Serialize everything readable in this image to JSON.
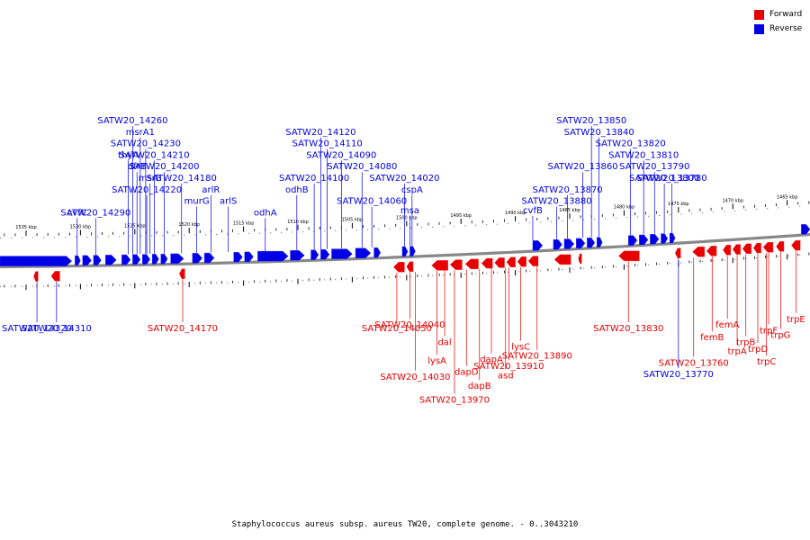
{
  "colors": {
    "forward": "#e60000",
    "reverse": "#0000e6"
  },
  "legend": [
    {
      "name": "Forward",
      "color": "#e60000"
    },
    {
      "name": "Reverse",
      "color": "#0000e6"
    }
  ],
  "caption": "Staphylococcus aureus subsp. aureus TW20, complete genome. - 0..3043210",
  "track": {
    "start_kbp": 1537.4,
    "end_kbp": 1462.9,
    "ticks": [
      "1535 kbp",
      "1530 kbp",
      "1525 kbp",
      "1520 kbp",
      "1515 kbp",
      "1510 kbp",
      "1505 kbp",
      "1500 kbp",
      "1495 kbp",
      "1490 kbp",
      "1485 kbp",
      "1480 kbp",
      "1475 kbp",
      "1470 kbp",
      "1465 kbp"
    ]
  },
  "reverse_genes": [
    {
      "start": 1537.4,
      "end": 1530.8
    },
    {
      "start": 1530.5,
      "end": 1530.0
    },
    {
      "start": 1529.8,
      "end": 1529.0
    },
    {
      "start": 1528.8,
      "end": 1528.1
    },
    {
      "start": 1527.7,
      "end": 1526.7
    },
    {
      "start": 1526.2,
      "end": 1525.4
    },
    {
      "start": 1525.2,
      "end": 1524.5
    },
    {
      "start": 1524.3,
      "end": 1523.6
    },
    {
      "start": 1523.4,
      "end": 1522.8
    },
    {
      "start": 1522.6,
      "end": 1522.0
    },
    {
      "start": 1521.7,
      "end": 1520.5
    },
    {
      "start": 1519.7,
      "end": 1518.8
    },
    {
      "start": 1518.6,
      "end": 1517.7
    },
    {
      "start": 1515.9,
      "end": 1515.1
    },
    {
      "start": 1514.9,
      "end": 1514.1
    },
    {
      "start": 1513.7,
      "end": 1510.9
    },
    {
      "start": 1510.7,
      "end": 1509.4
    },
    {
      "start": 1508.8,
      "end": 1508.1
    },
    {
      "start": 1507.9,
      "end": 1507.1
    },
    {
      "start": 1506.9,
      "end": 1505.0
    },
    {
      "start": 1504.7,
      "end": 1503.3
    },
    {
      "start": 1503.0,
      "end": 1502.4
    },
    {
      "start": 1500.4,
      "end": 1499.9
    },
    {
      "start": 1499.7,
      "end": 1499.2
    },
    {
      "start": 1488.4,
      "end": 1487.5
    },
    {
      "start": 1486.5,
      "end": 1485.7
    },
    {
      "start": 1485.5,
      "end": 1484.6
    },
    {
      "start": 1484.4,
      "end": 1483.6
    },
    {
      "start": 1483.4,
      "end": 1482.7
    },
    {
      "start": 1482.5,
      "end": 1482.0
    },
    {
      "start": 1479.6,
      "end": 1478.8
    },
    {
      "start": 1478.6,
      "end": 1477.8
    },
    {
      "start": 1477.6,
      "end": 1476.8
    },
    {
      "start": 1476.6,
      "end": 1476.0
    },
    {
      "start": 1475.8,
      "end": 1475.3
    },
    {
      "start": 1463.7,
      "end": 1462.9
    }
  ],
  "forward_genes": [
    {
      "start": 1534.3,
      "end": 1533.9
    },
    {
      "start": 1532.7,
      "end": 1531.9
    },
    {
      "start": 1520.9,
      "end": 1520.4
    },
    {
      "start": 1501.2,
      "end": 1500.2
    },
    {
      "start": 1500.0,
      "end": 1499.4
    },
    {
      "start": 1497.7,
      "end": 1496.2
    },
    {
      "start": 1496.0,
      "end": 1494.9
    },
    {
      "start": 1494.6,
      "end": 1493.4
    },
    {
      "start": 1493.1,
      "end": 1492.1
    },
    {
      "start": 1491.9,
      "end": 1491.0
    },
    {
      "start": 1490.8,
      "end": 1490.0
    },
    {
      "start": 1489.8,
      "end": 1489.0
    },
    {
      "start": 1488.8,
      "end": 1487.9
    },
    {
      "start": 1486.4,
      "end": 1484.9
    },
    {
      "start": 1484.2,
      "end": 1483.9
    },
    {
      "start": 1480.5,
      "end": 1478.6
    },
    {
      "start": 1475.3,
      "end": 1474.8
    },
    {
      "start": 1473.7,
      "end": 1472.6
    },
    {
      "start": 1472.4,
      "end": 1471.5
    },
    {
      "start": 1470.9,
      "end": 1470.2
    },
    {
      "start": 1470.0,
      "end": 1469.3
    },
    {
      "start": 1469.1,
      "end": 1468.3
    },
    {
      "start": 1468.1,
      "end": 1467.4
    },
    {
      "start": 1467.2,
      "end": 1466.3
    },
    {
      "start": 1466.0,
      "end": 1465.3
    },
    {
      "start": 1464.6,
      "end": 1463.8
    }
  ],
  "top_labels": [
    {
      "text": "SATW20_14260",
      "kbp": 1525.2,
      "row": 0
    },
    {
      "text": "msrA1",
      "kbp": 1524.5,
      "row": 1
    },
    {
      "text": "SATW20_14230",
      "kbp": 1524.0,
      "row": 2
    },
    {
      "text": "thyA",
      "kbp": 1525.6,
      "row": 3
    },
    {
      "text": "SATW20_14210",
      "kbp": 1523.2,
      "row": 3
    },
    {
      "text": "dfrB",
      "kbp": 1524.8,
      "row": 4
    },
    {
      "text": "SATW20_14200",
      "kbp": 1522.3,
      "row": 4
    },
    {
      "text": "msrB",
      "kbp": 1523.6,
      "row": 5
    },
    {
      "text": "SATW20_14180",
      "kbp": 1520.7,
      "row": 5
    },
    {
      "text": "SATW20_14220",
      "kbp": 1523.9,
      "row": 6
    },
    {
      "text": "arlR",
      "kbp": 1518.0,
      "row": 6
    },
    {
      "text": "murG",
      "kbp": 1519.3,
      "row": 7
    },
    {
      "text": "arlS",
      "kbp": 1516.4,
      "row": 7
    },
    {
      "text": "cvfC",
      "kbp": 1530.3,
      "row": 8
    },
    {
      "text": "SATW20_14290",
      "kbp": 1528.6,
      "row": 8
    },
    {
      "text": "odhA",
      "kbp": 1513.0,
      "row": 8
    },
    {
      "text": "SATW20_14120",
      "kbp": 1507.9,
      "row": 1
    },
    {
      "text": "SATW20_14110",
      "kbp": 1507.3,
      "row": 2
    },
    {
      "text": "SATW20_14090",
      "kbp": 1506.0,
      "row": 3
    },
    {
      "text": "SATW20_14080",
      "kbp": 1504.1,
      "row": 4
    },
    {
      "text": "SATW20_14100",
      "kbp": 1508.5,
      "row": 5
    },
    {
      "text": "SATW20_14020",
      "kbp": 1500.2,
      "row": 5
    },
    {
      "text": "odhB",
      "kbp": 1510.1,
      "row": 6
    },
    {
      "text": "cspA",
      "kbp": 1499.5,
      "row": 6
    },
    {
      "text": "SATW20_14060",
      "kbp": 1503.2,
      "row": 7
    },
    {
      "text": "msa",
      "kbp": 1499.7,
      "row": 7.8
    },
    {
      "text": "cvfB",
      "kbp": 1488.4,
      "row": 7.8
    },
    {
      "text": "SATW20_13850",
      "kbp": 1483.0,
      "row": 0
    },
    {
      "text": "SATW20_13840",
      "kbp": 1482.3,
      "row": 1
    },
    {
      "text": "SATW20_13820",
      "kbp": 1479.4,
      "row": 2
    },
    {
      "text": "SATW20_13810",
      "kbp": 1478.2,
      "row": 3
    },
    {
      "text": "SATW20_13860",
      "kbp": 1483.8,
      "row": 4
    },
    {
      "text": "SATW20_13790",
      "kbp": 1477.2,
      "row": 4
    },
    {
      "text": "SATW20_13800",
      "kbp": 1476.3,
      "row": 5
    },
    {
      "text": "SATW20_13780",
      "kbp": 1475.6,
      "row": 5
    },
    {
      "text": "SATW20_13870",
      "kbp": 1485.2,
      "row": 6
    },
    {
      "text": "SATW20_13880",
      "kbp": 1486.2,
      "row": 7
    }
  ],
  "bottom_labels": [
    {
      "text": "SATW20_14320",
      "kbp": 1534.0,
      "row": 0,
      "strand": "reverse"
    },
    {
      "text": "SATW20_14310",
      "kbp": 1532.2,
      "row": 0,
      "strand": "reverse"
    },
    {
      "text": "SATW20_14170",
      "kbp": 1520.6,
      "row": 0,
      "strand": "forward"
    },
    {
      "text": "SATW20_14050",
      "kbp": 1500.9,
      "row": 0,
      "strand": "forward"
    },
    {
      "text": "SATW20_14040",
      "kbp": 1499.7,
      "row": -0.3,
      "strand": "forward"
    },
    {
      "text": "SATW20_13830",
      "kbp": 1479.6,
      "row": 0,
      "strand": "forward"
    },
    {
      "text": "femA",
      "kbp": 1470.5,
      "row": -0.3,
      "strand": "forward"
    },
    {
      "text": "trpE",
      "kbp": 1464.2,
      "row": -0.8,
      "strand": "forward"
    },
    {
      "text": "femB",
      "kbp": 1471.9,
      "row": 0.8,
      "strand": "forward"
    },
    {
      "text": "trpF",
      "kbp": 1466.7,
      "row": 0.2,
      "strand": "forward"
    },
    {
      "text": "trpG",
      "kbp": 1465.6,
      "row": 0.6,
      "strand": "forward"
    },
    {
      "text": "dal",
      "kbp": 1496.5,
      "row": 1.2,
      "strand": "forward"
    },
    {
      "text": "lysC",
      "kbp": 1489.5,
      "row": 1.6,
      "strand": "forward"
    },
    {
      "text": "trpB",
      "kbp": 1468.8,
      "row": 1.2,
      "strand": "forward"
    },
    {
      "text": "trpA",
      "kbp": 1469.6,
      "row": 2.0,
      "strand": "forward"
    },
    {
      "text": "trpD",
      "kbp": 1467.7,
      "row": 1.8,
      "strand": "forward"
    },
    {
      "text": "SATW20_13890",
      "kbp": 1488.0,
      "row": 2.4,
      "strand": "forward"
    },
    {
      "text": "lysA",
      "kbp": 1497.2,
      "row": 2.8,
      "strand": "forward"
    },
    {
      "text": "dapA",
      "kbp": 1492.2,
      "row": 2.7,
      "strand": "forward"
    },
    {
      "text": "trpC",
      "kbp": 1466.9,
      "row": 2.9,
      "strand": "forward"
    },
    {
      "text": "SATW20_13760",
      "kbp": 1473.6,
      "row": 3.0,
      "strand": "forward"
    },
    {
      "text": "SATW20_13910",
      "kbp": 1490.6,
      "row": 3.3,
      "strand": "forward"
    },
    {
      "text": "dapD",
      "kbp": 1494.5,
      "row": 3.8,
      "strand": "forward"
    },
    {
      "text": "asd",
      "kbp": 1490.9,
      "row": 4.1,
      "strand": "forward"
    },
    {
      "text": "SATW20_13770",
      "kbp": 1475.0,
      "row": 4.0,
      "strand": "reverse"
    },
    {
      "text": "SATW20_14030",
      "kbp": 1499.2,
      "row": 4.2,
      "strand": "forward"
    },
    {
      "text": "dapB",
      "kbp": 1493.3,
      "row": 5.0,
      "strand": "forward"
    },
    {
      "text": "SATW20_13970",
      "kbp": 1495.6,
      "row": 6.2,
      "strand": "forward"
    }
  ]
}
